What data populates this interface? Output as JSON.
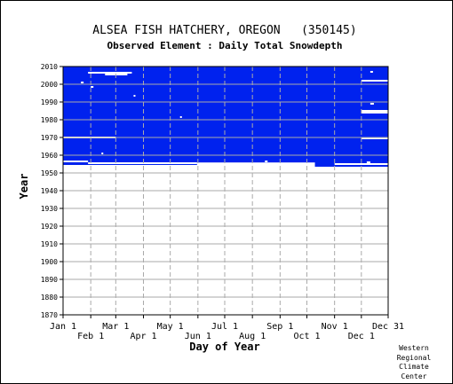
{
  "chart_data": {
    "type": "heatmap",
    "title": "ALSEA FISH HATCHERY, OREGON   (350145)",
    "subtitle": "Observed Element : Daily Total Snowdepth",
    "xlabel": "Day of Year",
    "ylabel": "Year",
    "ylim": [
      1870,
      2010
    ],
    "xlim": [
      1,
      365
    ],
    "grid": true,
    "y_ticks": [
      1870,
      1880,
      1890,
      1900,
      1910,
      1920,
      1930,
      1940,
      1950,
      1960,
      1970,
      1980,
      1990,
      2000,
      2010
    ],
    "x_ticks_upper": [
      {
        "label": "Jan 1",
        "day": 1
      },
      {
        "label": "Mar 1",
        "day": 60
      },
      {
        "label": "May 1",
        "day": 121
      },
      {
        "label": "Jul 1",
        "day": 182
      },
      {
        "label": "Sep 1",
        "day": 244
      },
      {
        "label": "Nov 1",
        "day": 305
      },
      {
        "label": "Dec 31",
        "day": 365
      }
    ],
    "x_ticks_lower": [
      {
        "label": "Feb 1",
        "day": 32
      },
      {
        "label": "Apr 1",
        "day": 91
      },
      {
        "label": "Jun 1",
        "day": 152
      },
      {
        "label": "Aug 1",
        "day": 213
      },
      {
        "label": "Oct 1",
        "day": 274
      },
      {
        "label": "Dec 1",
        "day": 335
      }
    ],
    "colors": {
      "observed": "#0022ee",
      "missing": "#ffffff",
      "grid": "#aaaaaa"
    },
    "observed_period": {
      "start_year": 1954.5,
      "end_year": 2010
    },
    "observed_edge_segments": [
      {
        "year_start": 1954.5,
        "year_end": 1956,
        "day_start": 1,
        "day_end": 151
      },
      {
        "year_start": 1953.5,
        "year_end": 1956,
        "day_start": 283,
        "day_end": 365
      }
    ],
    "missing_segments": [
      {
        "year": 2006.5,
        "day_start": 29,
        "day_end": 78
      },
      {
        "year": 2005.5,
        "day_start": 48,
        "day_end": 73
      },
      {
        "year": 2001,
        "day_start": 21,
        "day_end": 24
      },
      {
        "year": 1998.5,
        "day_start": 32,
        "day_end": 35
      },
      {
        "year": 1993.5,
        "day_start": 80,
        "day_end": 82
      },
      {
        "year": 1981.5,
        "day_start": 132,
        "day_end": 134
      },
      {
        "year": 1970,
        "day_start": 1,
        "day_end": 60
      },
      {
        "year": 1961,
        "day_start": 44,
        "day_end": 46
      },
      {
        "year": 1956.5,
        "day_start": 1,
        "day_end": 29
      },
      {
        "year": 1955.5,
        "day_start": 29,
        "day_end": 151
      },
      {
        "year": 1956.5,
        "day_start": 227,
        "day_end": 230
      },
      {
        "year": 2007,
        "day_start": 345,
        "day_end": 348
      },
      {
        "year": 2002,
        "day_start": 335,
        "day_end": 365
      },
      {
        "year": 1989,
        "day_start": 345,
        "day_end": 349
      },
      {
        "year": 1985,
        "day_start": 335,
        "day_end": 365
      },
      {
        "year": 1984,
        "day_start": 335,
        "day_end": 365
      },
      {
        "year": 1969.5,
        "day_start": 335,
        "day_end": 365
      },
      {
        "year": 1956,
        "day_start": 341,
        "day_end": 345
      },
      {
        "year": 1955,
        "day_start": 305,
        "day_end": 365
      }
    ]
  },
  "credit": {
    "line1": "Western",
    "line2": "Regional",
    "line3": "Climate",
    "line4": "Center"
  }
}
